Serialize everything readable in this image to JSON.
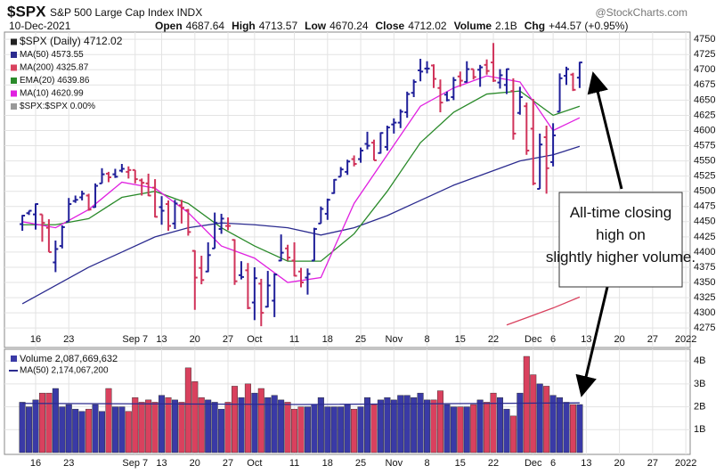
{
  "chart_data": {
    "type": "ohlc",
    "header": {
      "symbol": "$SPX",
      "name": "S&P 500 Large Cap Index INDX",
      "source": "@StockCharts.com",
      "date": "10-Dec-2021",
      "quote": [
        [
          "Open",
          "4687.64"
        ],
        [
          "High",
          "4713.57"
        ],
        [
          "Low",
          "4670.24"
        ],
        [
          "Close",
          "4712.02"
        ],
        [
          "Volume",
          "2.1B"
        ],
        [
          "Chg",
          "+44.57 (+0.95%)"
        ]
      ]
    },
    "categories": [
      "2021-08-12",
      "2021-08-13",
      "2021-08-16",
      "2021-08-17",
      "2021-08-18",
      "2021-08-19",
      "2021-08-20",
      "2021-08-23",
      "2021-08-24",
      "2021-08-25",
      "2021-08-26",
      "2021-08-27",
      "2021-08-30",
      "2021-08-31",
      "2021-09-01",
      "2021-09-02",
      "2021-09-03",
      "2021-09-07",
      "2021-09-08",
      "2021-09-09",
      "2021-09-10",
      "2021-09-13",
      "2021-09-14",
      "2021-09-15",
      "2021-09-16",
      "2021-09-17",
      "2021-09-20",
      "2021-09-21",
      "2021-09-22",
      "2021-09-23",
      "2021-09-24",
      "2021-09-27",
      "2021-09-28",
      "2021-09-29",
      "2021-09-30",
      "2021-10-01",
      "2021-10-04",
      "2021-10-05",
      "2021-10-06",
      "2021-10-07",
      "2021-10-08",
      "2021-10-11",
      "2021-10-12",
      "2021-10-13",
      "2021-10-14",
      "2021-10-15",
      "2021-10-18",
      "2021-10-19",
      "2021-10-20",
      "2021-10-21",
      "2021-10-22",
      "2021-10-25",
      "2021-10-26",
      "2021-10-27",
      "2021-10-28",
      "2021-10-29",
      "2021-11-01",
      "2021-11-02",
      "2021-11-03",
      "2021-11-04",
      "2021-11-05",
      "2021-11-08",
      "2021-11-09",
      "2021-11-10",
      "2021-11-11",
      "2021-11-12",
      "2021-11-15",
      "2021-11-16",
      "2021-11-17",
      "2021-11-18",
      "2021-11-19",
      "2021-11-22",
      "2021-11-23",
      "2021-11-24",
      "2021-11-26",
      "2021-11-29",
      "2021-11-30",
      "2021-12-01",
      "2021-12-02",
      "2021-12-03",
      "2021-12-06",
      "2021-12-07",
      "2021-12-08",
      "2021-12-09",
      "2021-12-10"
    ],
    "series": [
      {
        "name": "$SPX (Daily) 4712.02",
        "up_color": "#1f1f99",
        "down_color": "#d0335a",
        "open": [
          4446,
          4464,
          4462,
          4462,
          4440,
          4383,
          4410,
          4450,
          4484,
          4490,
          4493,
          4474,
          4513,
          4529,
          4528,
          4534,
          4532,
          4535,
          4518,
          4513,
          4506,
          4474,
          4479,
          4447,
          4477,
          4469,
          4402,
          4374,
          4368,
          4406,
          4438,
          4443,
          4420,
          4362,
          4370,
          4317,
          4348,
          4310,
          4320,
          4386,
          4406,
          4386,
          4368,
          4358,
          4386,
          4447,
          4463,
          4497,
          4524,
          4532,
          4553,
          4553,
          4578,
          4580,
          4563,
          4573,
          4610,
          4613,
          4630,
          4662,
          4699,
          4702,
          4707,
          4670,
          4659,
          4655,
          4689,
          4680,
          4701,
          4700,
          4708,
          4712,
          4679,
          4675,
          4665,
          4629,
          4640,
          4603,
          4504,
          4589,
          4548,
          4631,
          4690,
          4692,
          4687
        ],
        "high": [
          4461,
          4468,
          4480,
          4462,
          4454,
          4419,
          4444,
          4489,
          4493,
          4501,
          4496,
          4513,
          4538,
          4532,
          4537,
          4545,
          4541,
          4535,
          4521,
          4529,
          4520,
          4492,
          4485,
          4486,
          4486,
          4471,
          4403,
          4394,
          4416,
          4465,
          4463,
          4457,
          4421,
          4385,
          4382,
          4375,
          4356,
          4369,
          4365,
          4429,
          4412,
          4416,
          4374,
          4373,
          4440,
          4475,
          4488,
          4520,
          4540,
          4552,
          4559,
          4572,
          4598,
          4585,
          4597,
          4608,
          4620,
          4635,
          4664,
          4684,
          4718,
          4714,
          4709,
          4684,
          4664,
          4688,
          4697,
          4714,
          4701,
          4708,
          4717,
          4744,
          4701,
          4702,
          4686,
          4672,
          4646,
          4652,
          4595,
          4608,
          4612,
          4694,
          4705,
          4695,
          4713
        ],
        "low": [
          4435,
          4461,
          4437,
          4417,
          4400,
          4367,
          4406,
          4450,
          4481,
          4485,
          4468,
          4473,
          4513,
          4515,
          4522,
          4531,
          4521,
          4513,
          4493,
          4492,
          4457,
          4445,
          4435,
          4438,
          4447,
          4427,
          4305,
          4347,
          4367,
          4406,
          4430,
          4436,
          4346,
          4355,
          4306,
          4288,
          4278,
          4309,
          4293,
          4385,
          4386,
          4360,
          4342,
          4330,
          4386,
          4447,
          4453,
          4496,
          4524,
          4527,
          4541,
          4547,
          4569,
          4551,
          4562,
          4567,
          4595,
          4604,
          4621,
          4655,
          4681,
          4694,
          4670,
          4630,
          4648,
          4650,
          4672,
          4679,
          4684,
          4672,
          4692,
          4680,
          4669,
          4660,
          4585,
          4626,
          4560,
          4510,
          4504,
          4496,
          4541,
          4631,
          4675,
          4665,
          4670
        ],
        "close": [
          4460,
          4468,
          4479,
          4448,
          4400,
          4405,
          4441,
          4479,
          4486,
          4496,
          4470,
          4509,
          4528,
          4523,
          4524,
          4537,
          4535,
          4520,
          4514,
          4493,
          4458,
          4468,
          4443,
          4480,
          4473,
          4433,
          4358,
          4354,
          4395,
          4448,
          4455,
          4443,
          4352,
          4359,
          4308,
          4357,
          4300,
          4345,
          4363,
          4399,
          4391,
          4361,
          4350,
          4364,
          4438,
          4471,
          4486,
          4519,
          4536,
          4549,
          4545,
          4567,
          4575,
          4551,
          4596,
          4605,
          4613,
          4631,
          4660,
          4680,
          4697,
          4702,
          4685,
          4646,
          4650,
          4683,
          4682,
          4701,
          4688,
          4704,
          4698,
          4682,
          4691,
          4701,
          4595,
          4655,
          4567,
          4513,
          4577,
          4538,
          4592,
          4686,
          4701,
          4667,
          4712
        ]
      }
    ],
    "lines": [
      {
        "name": "MA(50) 4573.55",
        "color": "#2b2b8f",
        "x": [
          "2021-08-12",
          "2021-08-19",
          "2021-08-26",
          "2021-09-02",
          "2021-09-10",
          "2021-09-17",
          "2021-09-24",
          "2021-10-01",
          "2021-10-08",
          "2021-10-15",
          "2021-10-22",
          "2021-10-29",
          "2021-11-05",
          "2021-11-12",
          "2021-11-19",
          "2021-11-29",
          "2021-12-06",
          "2021-12-10"
        ],
        "values": [
          4315,
          4345,
          4375,
          4400,
          4425,
          4440,
          4448,
          4445,
          4440,
          4428,
          4440,
          4460,
          4485,
          4510,
          4530,
          4550,
          4560,
          4574
        ]
      },
      {
        "name": "MA(200) 4325.87",
        "color": "#d9425f",
        "x": [
          "2021-11-24",
          "2021-11-30",
          "2021-12-06",
          "2021-12-10"
        ],
        "values": [
          4280,
          4292,
          4308,
          4326
        ]
      },
      {
        "name": "EMA(20) 4639.86",
        "color": "#2a8a2a",
        "x": [
          "2021-08-12",
          "2021-08-19",
          "2021-08-26",
          "2021-09-02",
          "2021-09-10",
          "2021-09-17",
          "2021-09-24",
          "2021-10-01",
          "2021-10-08",
          "2021-10-15",
          "2021-10-22",
          "2021-10-29",
          "2021-11-05",
          "2021-11-12",
          "2021-11-19",
          "2021-11-29",
          "2021-12-06",
          "2021-12-10"
        ],
        "values": [
          4445,
          4445,
          4455,
          4490,
          4500,
          4480,
          4440,
          4410,
          4385,
          4385,
          4430,
          4500,
          4580,
          4630,
          4660,
          4665,
          4625,
          4640
        ]
      },
      {
        "name": "MA(10) 4620.99",
        "color": "#e020e0",
        "x": [
          "2021-08-12",
          "2021-08-19",
          "2021-08-26",
          "2021-09-02",
          "2021-09-10",
          "2021-09-17",
          "2021-09-24",
          "2021-10-01",
          "2021-10-08",
          "2021-10-15",
          "2021-10-22",
          "2021-10-29",
          "2021-11-05",
          "2021-11-12",
          "2021-11-19",
          "2021-11-29",
          "2021-12-06",
          "2021-12-10"
        ],
        "values": [
          4450,
          4440,
          4470,
          4515,
          4505,
          4465,
          4410,
          4390,
          4350,
          4358,
          4480,
          4560,
          4640,
          4670,
          4690,
          4680,
          4600,
          4621
        ]
      },
      {
        "name": "$SPX:$SPX 0.00%",
        "color": "#999999",
        "x": [],
        "values": []
      }
    ],
    "ylim": [
      4243,
      4762
    ],
    "yticks": [
      4275,
      4300,
      4325,
      4350,
      4375,
      4400,
      4425,
      4450,
      4475,
      4500,
      4525,
      4550,
      4575,
      4600,
      4625,
      4650,
      4675,
      4700,
      4725,
      4750
    ],
    "xticks": [
      {
        "value": "2021-08-16",
        "label": "16"
      },
      {
        "value": "2021-08-23",
        "label": "23"
      },
      {
        "value": "2021-09-07",
        "label": "Sep 7"
      },
      {
        "value": "2021-09-13",
        "label": "13"
      },
      {
        "value": "2021-09-20",
        "label": "20"
      },
      {
        "value": "2021-09-27",
        "label": "27"
      },
      {
        "value": "2021-10-01",
        "label": "Oct"
      },
      {
        "value": "2021-10-11",
        "label": "11"
      },
      {
        "value": "2021-10-18",
        "label": "18"
      },
      {
        "value": "2021-10-25",
        "label": "25"
      },
      {
        "value": "2021-11-01",
        "label": "Nov"
      },
      {
        "value": "2021-11-08",
        "label": "8"
      },
      {
        "value": "2021-11-15",
        "label": "15"
      },
      {
        "value": "2021-11-22",
        "label": "22"
      },
      {
        "value": "2021-12-01",
        "label": "Dec"
      },
      {
        "value": "2021-12-06",
        "label": "6"
      },
      {
        "value": "2021-12-13",
        "label": "13"
      },
      {
        "value": "2021-12-20",
        "label": "20"
      },
      {
        "value": "2021-12-27",
        "label": "27"
      },
      {
        "value": "2022-01-03",
        "label": "2022"
      }
    ],
    "grid": true,
    "volume": {
      "name": "Volume 2,087,669,632",
      "up_color": "#3a3aa6",
      "down_color": "#d9415e",
      "values": [
        2.2,
        2.0,
        2.3,
        2.6,
        2.6,
        2.8,
        2.0,
        2.1,
        1.9,
        1.8,
        1.9,
        2.1,
        1.8,
        2.8,
        2.0,
        2.0,
        1.8,
        2.4,
        2.2,
        2.3,
        2.2,
        2.5,
        2.4,
        2.3,
        2.2,
        3.7,
        3.1,
        2.4,
        2.3,
        2.2,
        1.9,
        2.2,
        2.9,
        2.4,
        3.0,
        2.6,
        2.8,
        2.4,
        2.5,
        2.3,
        2.2,
        1.9,
        2.0,
        2.0,
        2.1,
        2.4,
        2.0,
        2.0,
        2.0,
        2.1,
        1.9,
        2.0,
        2.4,
        2.1,
        2.3,
        2.4,
        2.3,
        2.5,
        2.5,
        2.4,
        2.6,
        2.3,
        2.3,
        2.7,
        2.1,
        2.0,
        2.0,
        2.0,
        2.1,
        2.3,
        2.2,
        2.6,
        2.4,
        1.9,
        1.6,
        2.6,
        4.2,
        3.4,
        3.0,
        2.9,
        2.5,
        2.4,
        2.2,
        2.1,
        2.1
      ],
      "ma": {
        "name": "MA(50) 2,174,067,200",
        "color": "#2b2b8f",
        "x": [
          "2021-08-12",
          "2021-10-12",
          "2021-12-10"
        ],
        "values": [
          2.15,
          2.1,
          2.17
        ]
      },
      "ylim": [
        0,
        4.55
      ],
      "yticks": [
        {
          "value": 1,
          "label": "1B"
        },
        {
          "value": 2,
          "label": "2B"
        },
        {
          "value": 3,
          "label": "3B"
        },
        {
          "value": 4,
          "label": "4B"
        }
      ]
    },
    "annotation": "All-time closing high on slightly higher volume."
  }
}
